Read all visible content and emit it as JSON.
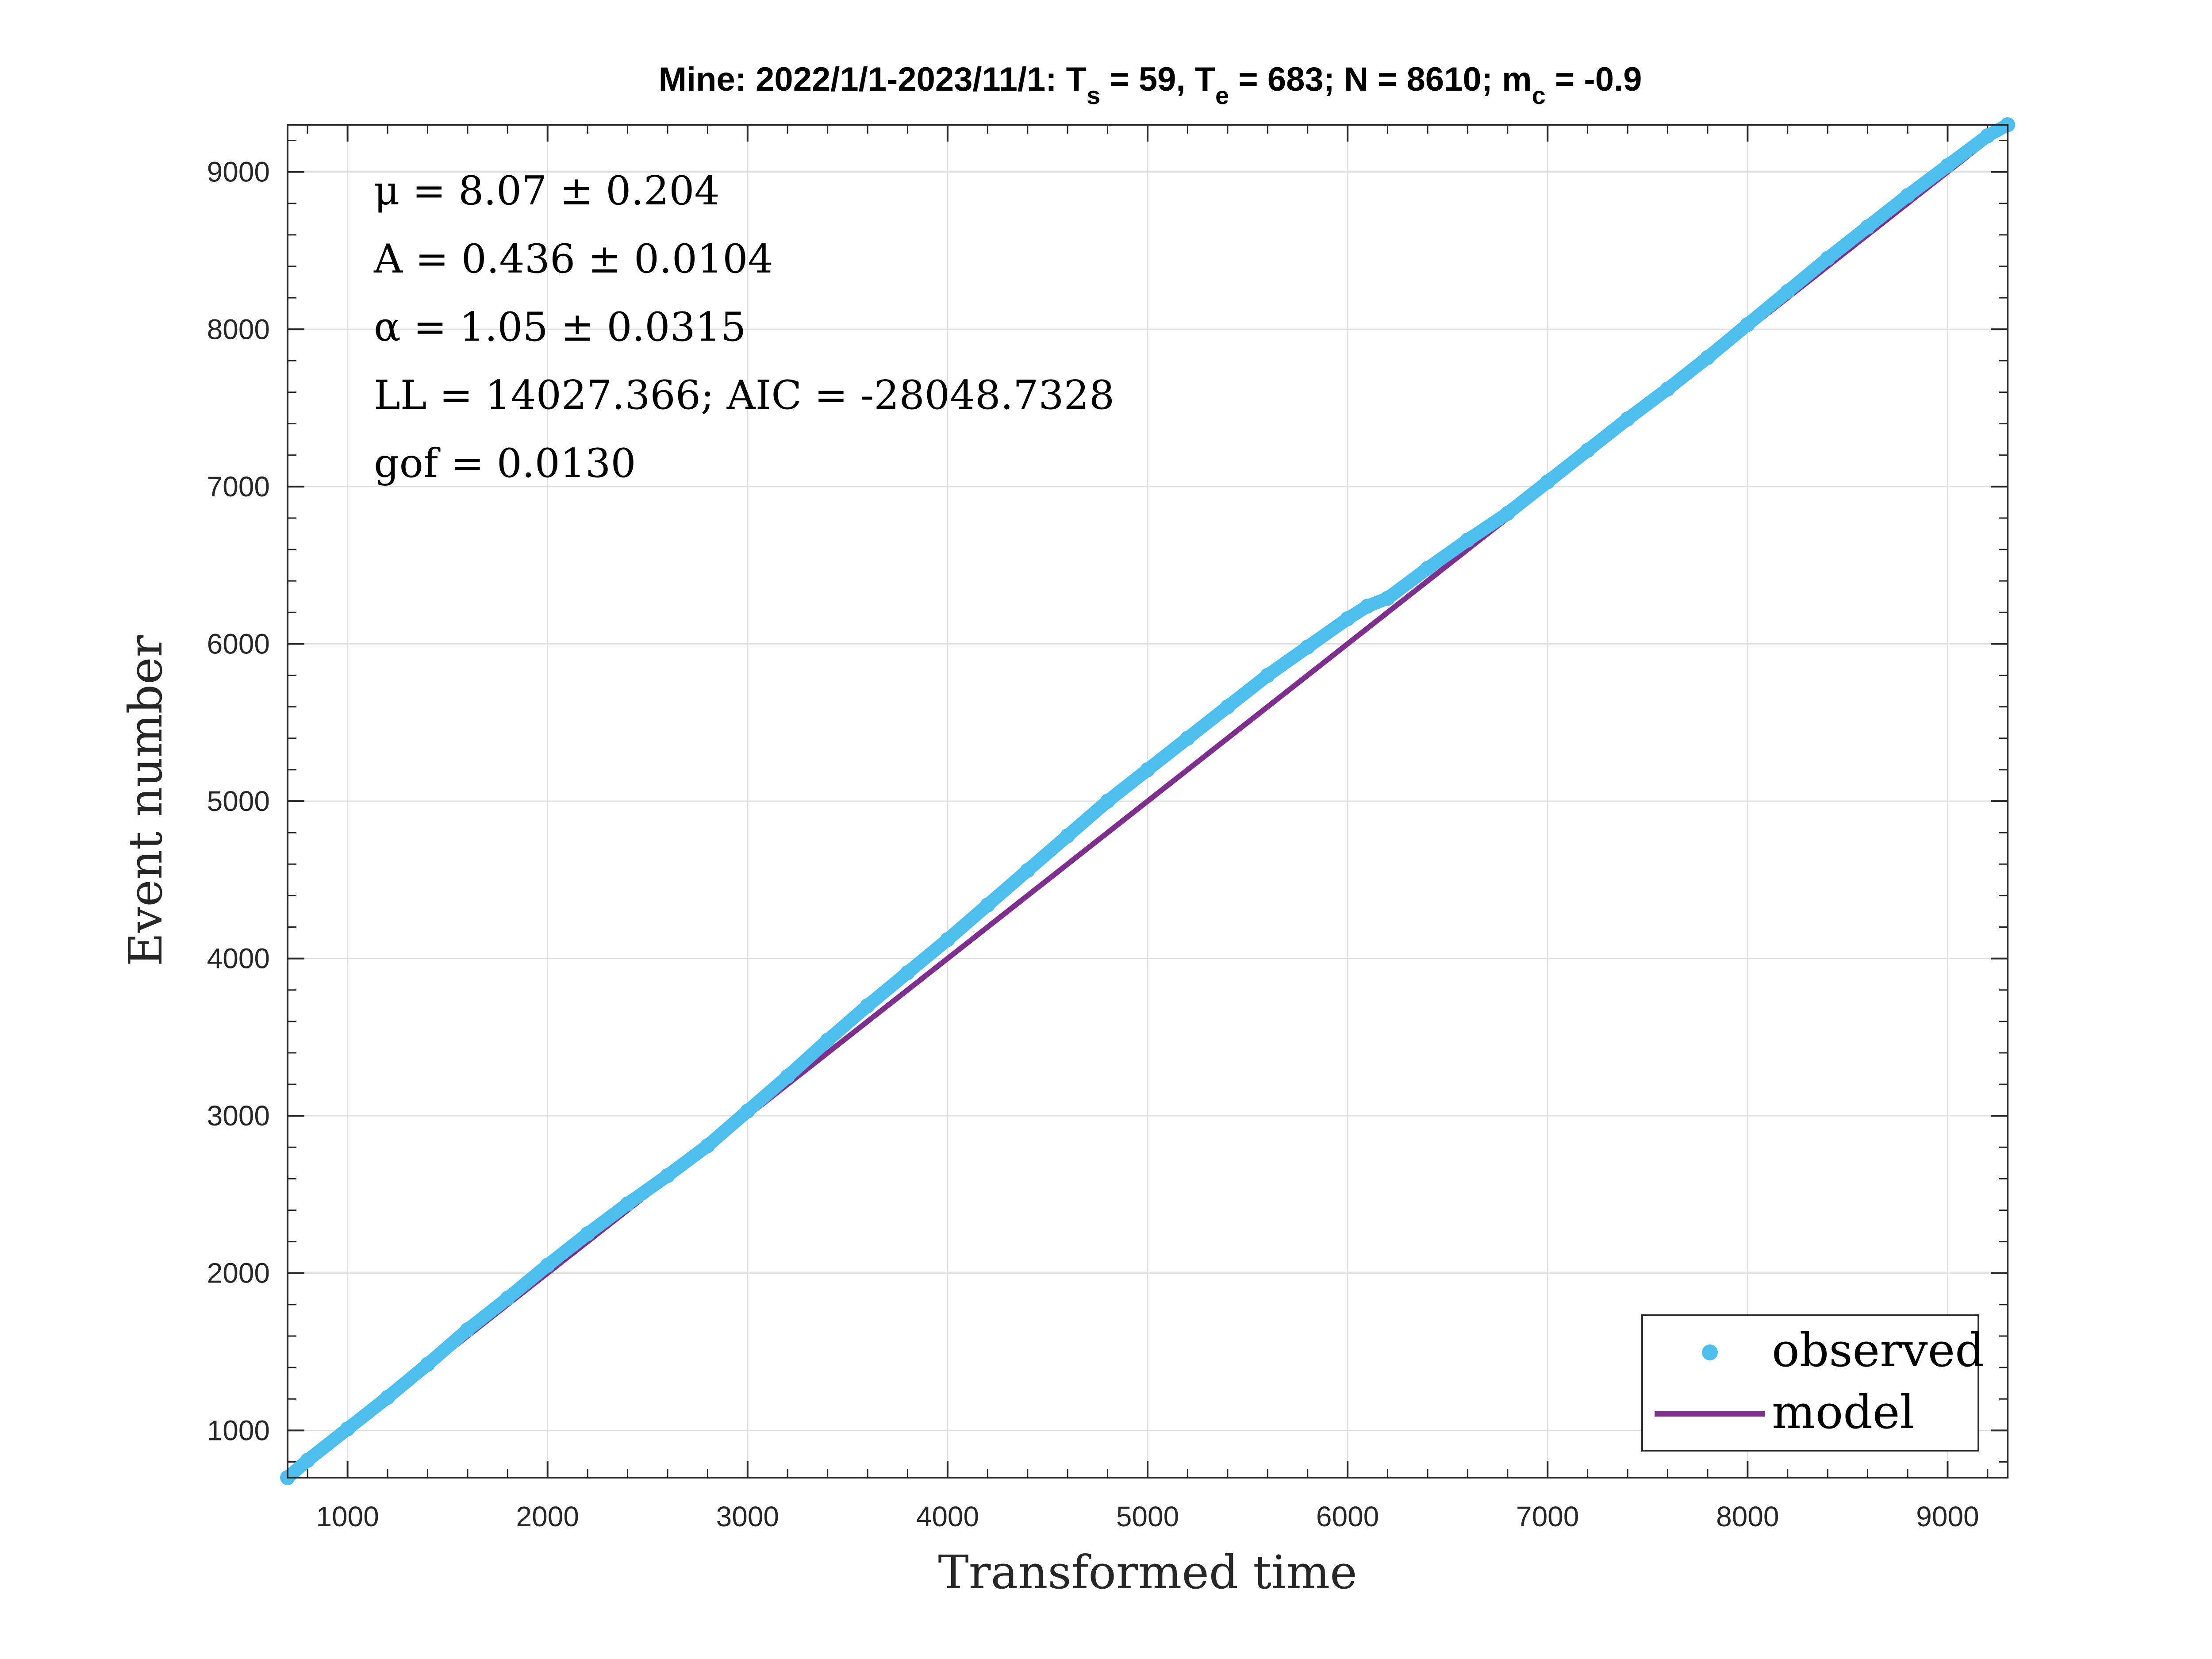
{
  "colors": {
    "observed": "#4DBEEE",
    "model": "#7E2F8E",
    "grid": "#DFDFDF",
    "axis": "#262626"
  },
  "chart_data": {
    "type": "scatter",
    "title": {
      "prefix": "Mine: 2022/1/1-2023/11/1: T",
      "ts_sub": "s",
      "mid1": " = 59, T",
      "te_sub": "e",
      "mid2": " = 683; N = 8610; m",
      "mc_sub": "c",
      "suffix": " = -0.9"
    },
    "xlabel": "Transformed time",
    "ylabel": "Event number",
    "xlim": [
      700,
      9300
    ],
    "ylim": [
      700,
      9300
    ],
    "xticks": [
      1000,
      2000,
      3000,
      4000,
      5000,
      6000,
      7000,
      8000,
      9000
    ],
    "yticks": [
      1000,
      2000,
      3000,
      4000,
      5000,
      6000,
      7000,
      8000,
      9000
    ],
    "grid": true,
    "box": true,
    "annotations": [
      "μ = 8.07 ± 0.204",
      "A = 0.436 ± 0.0104",
      "α = 1.05 ± 0.0315",
      "LL = 14027.366; AIC = -28048.7328",
      "gof = 0.0130"
    ],
    "legend": {
      "position": "bottom-right",
      "entries": [
        "observed",
        "model"
      ]
    },
    "series": [
      {
        "name": "observed",
        "kind": "points",
        "x": [
          700,
          800,
          1000,
          1200,
          1400,
          1600,
          1800,
          2000,
          2200,
          2400,
          2600,
          2800,
          3000,
          3200,
          3400,
          3600,
          3800,
          4000,
          4200,
          4400,
          4600,
          4800,
          5000,
          5200,
          5400,
          5600,
          5800,
          6000,
          6100,
          6200,
          6400,
          6600,
          6800,
          7000,
          7200,
          7400,
          7600,
          7800,
          8000,
          8200,
          8400,
          8600,
          8800,
          9000,
          9200,
          9300
        ],
        "y": [
          700,
          810,
          1010,
          1210,
          1420,
          1640,
          1840,
          2050,
          2250,
          2440,
          2620,
          2810,
          3030,
          3250,
          3480,
          3700,
          3910,
          4120,
          4340,
          4560,
          4780,
          5000,
          5200,
          5400,
          5600,
          5800,
          5980,
          6160,
          6240,
          6290,
          6480,
          6660,
          6830,
          7030,
          7230,
          7430,
          7620,
          7820,
          8030,
          8240,
          8450,
          8650,
          8850,
          9040,
          9230,
          9300
        ]
      },
      {
        "name": "model",
        "kind": "line",
        "x": [
          700,
          9300
        ],
        "y": [
          700,
          9300
        ]
      }
    ]
  }
}
